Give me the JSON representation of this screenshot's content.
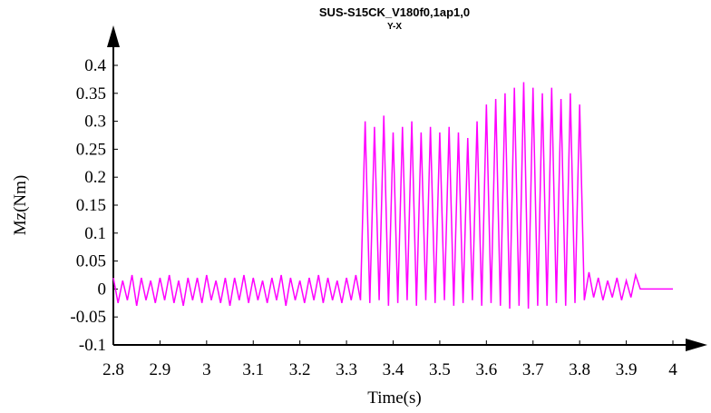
{
  "chart_data": {
    "type": "line",
    "title": "SUS-S15CK_V180f0,1ap1,0",
    "subtitle": "Y-X",
    "x_label": "Time(s)",
    "y_label": "Mz(Nm)",
    "color": "#ff00ff",
    "xlim": [
      2.8,
      4
    ],
    "ylim": [
      -0.1,
      0.4
    ],
    "xticks": [
      2.8,
      2.9,
      3,
      3.1,
      3.2,
      3.3,
      3.4,
      3.5,
      3.6,
      3.7,
      3.8,
      3.9,
      4
    ],
    "yticks": [
      -0.1,
      -0.05,
      0,
      0.05,
      0.1,
      0.15,
      0.2,
      0.25,
      0.3,
      0.35,
      0.4
    ],
    "x": [
      2.8,
      2.81,
      2.82,
      2.83,
      2.84,
      2.85,
      2.86,
      2.87,
      2.88,
      2.89,
      2.9,
      2.91,
      2.92,
      2.93,
      2.94,
      2.95,
      2.96,
      2.97,
      2.98,
      2.99,
      3,
      3.01,
      3.02,
      3.03,
      3.04,
      3.05,
      3.06,
      3.07,
      3.08,
      3.09,
      3.1,
      3.11,
      3.12,
      3.13,
      3.14,
      3.15,
      3.16,
      3.17,
      3.18,
      3.19,
      3.2,
      3.21,
      3.22,
      3.23,
      3.24,
      3.25,
      3.26,
      3.27,
      3.28,
      3.29,
      3.3,
      3.31,
      3.32,
      3.33,
      3.34,
      3.35,
      3.36,
      3.37,
      3.38,
      3.39,
      3.4,
      3.41,
      3.42,
      3.43,
      3.44,
      3.45,
      3.46,
      3.47,
      3.48,
      3.49,
      3.5,
      3.51,
      3.52,
      3.53,
      3.54,
      3.55,
      3.56,
      3.57,
      3.58,
      3.59,
      3.6,
      3.61,
      3.62,
      3.63,
      3.64,
      3.65,
      3.66,
      3.67,
      3.68,
      3.69,
      3.7,
      3.71,
      3.72,
      3.73,
      3.74,
      3.75,
      3.76,
      3.77,
      3.78,
      3.79,
      3.8,
      3.81,
      3.82,
      3.83,
      3.84,
      3.85,
      3.86,
      3.87,
      3.88,
      3.89,
      3.9,
      3.91,
      3.92,
      3.93,
      3.94,
      3.95,
      3.96,
      3.97,
      3.98,
      3.99,
      4
    ],
    "values": [
      0.02,
      -0.025,
      0.015,
      -0.02,
      0.025,
      -0.03,
      0.02,
      -0.02,
      0.015,
      -0.025,
      0.02,
      -0.02,
      0.025,
      -0.025,
      0.015,
      -0.03,
      0.02,
      -0.02,
      0.02,
      -0.025,
      0.025,
      -0.02,
      0.015,
      -0.025,
      0.02,
      -0.03,
      0.02,
      -0.02,
      0.025,
      -0.025,
      0.02,
      -0.02,
      0.015,
      -0.025,
      0.02,
      -0.02,
      0.025,
      -0.03,
      0.02,
      -0.02,
      0.015,
      -0.025,
      0.02,
      -0.02,
      0.025,
      -0.025,
      0.02,
      -0.02,
      0.015,
      -0.025,
      0.02,
      -0.02,
      0.025,
      -0.02,
      0.3,
      -0.025,
      0.29,
      -0.02,
      0.31,
      -0.03,
      0.28,
      -0.025,
      0.29,
      -0.02,
      0.3,
      -0.03,
      0.28,
      -0.02,
      0.29,
      -0.025,
      0.28,
      -0.02,
      0.29,
      -0.03,
      0.28,
      -0.025,
      0.27,
      -0.02,
      0.3,
      -0.03,
      0.33,
      -0.025,
      0.34,
      -0.03,
      0.35,
      -0.035,
      0.36,
      -0.03,
      0.37,
      -0.035,
      0.36,
      -0.03,
      0.35,
      -0.03,
      0.36,
      -0.025,
      0.34,
      -0.03,
      0.35,
      -0.025,
      0.33,
      -0.02,
      0.03,
      -0.015,
      0.02,
      -0.02,
      0.015,
      -0.015,
      0.02,
      -0.02,
      0.015,
      -0.015,
      0.025,
      0,
      0,
      0,
      0,
      0,
      0,
      0,
      0
    ]
  }
}
